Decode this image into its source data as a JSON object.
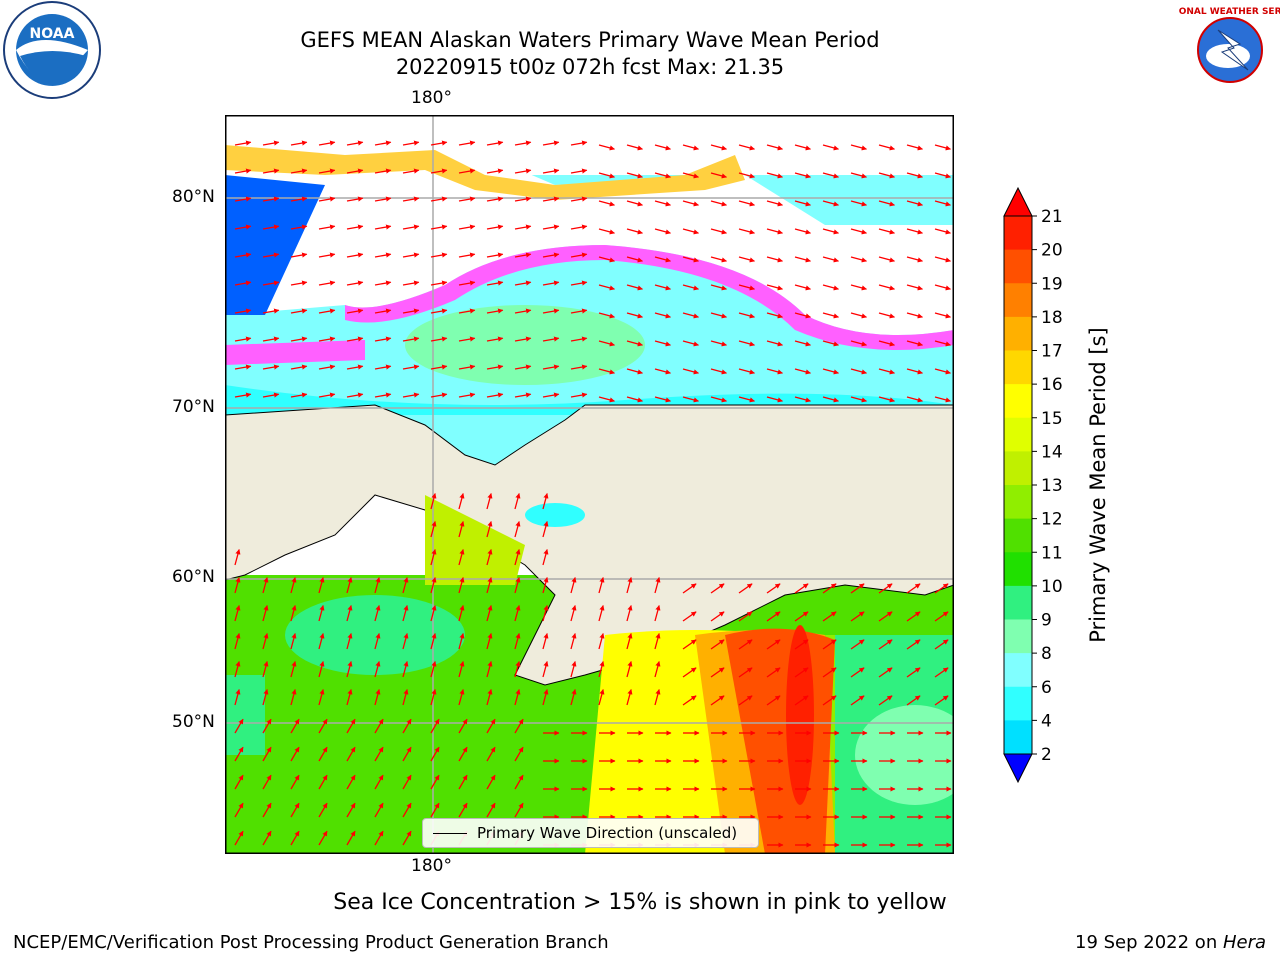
{
  "title_line1": "GEFS MEAN Alaskan Waters Primary Wave Mean Period",
  "title_line2": "20220915 t00z 072h fcst   Max: 21.35",
  "lon_label_top": "180°",
  "lon_label_bottom": "180°",
  "lat_labels": [
    "80°N",
    "70°N",
    "60°N",
    "50°N"
  ],
  "legend_label": "Primary Wave Direction (unscaled)",
  "caption": "Sea Ice Concentration > 15% is shown in pink to yellow",
  "footer_left": "NCEP/EMC/Verification Post Processing Product Generation Branch",
  "footer_right_date": "19 Sep 2022 on ",
  "footer_right_machine": "Hera",
  "logos": {
    "left": {
      "name": "noaa-logo",
      "text": "NOAA"
    },
    "right": {
      "name": "nws-logo",
      "text": "NATIONAL WEATHER SERVICE"
    }
  },
  "colorbar": {
    "label": "Primary Wave Mean Period [s]",
    "ticks": [
      "21",
      "20",
      "19",
      "18",
      "17",
      "16",
      "15",
      "14",
      "13",
      "12",
      "11",
      "10",
      "9",
      "8",
      "6",
      "4",
      "2"
    ],
    "colors": [
      "#ff2000",
      "#ff5000",
      "#ff8000",
      "#ffb000",
      "#ffd700",
      "#ffff00",
      "#e0ff00",
      "#c0f000",
      "#90ee00",
      "#50e000",
      "#20e000",
      "#30f080",
      "#7fffb0",
      "#80ffff",
      "#30ffff",
      "#00e0ff",
      "#0060ff"
    ]
  },
  "colors": {
    "land": "#efecdc",
    "ice_white": "#ffffff",
    "ice_pink": "#ff60ff",
    "ice_yellow": "#ffd040",
    "arrow": "#ff0000"
  }
}
